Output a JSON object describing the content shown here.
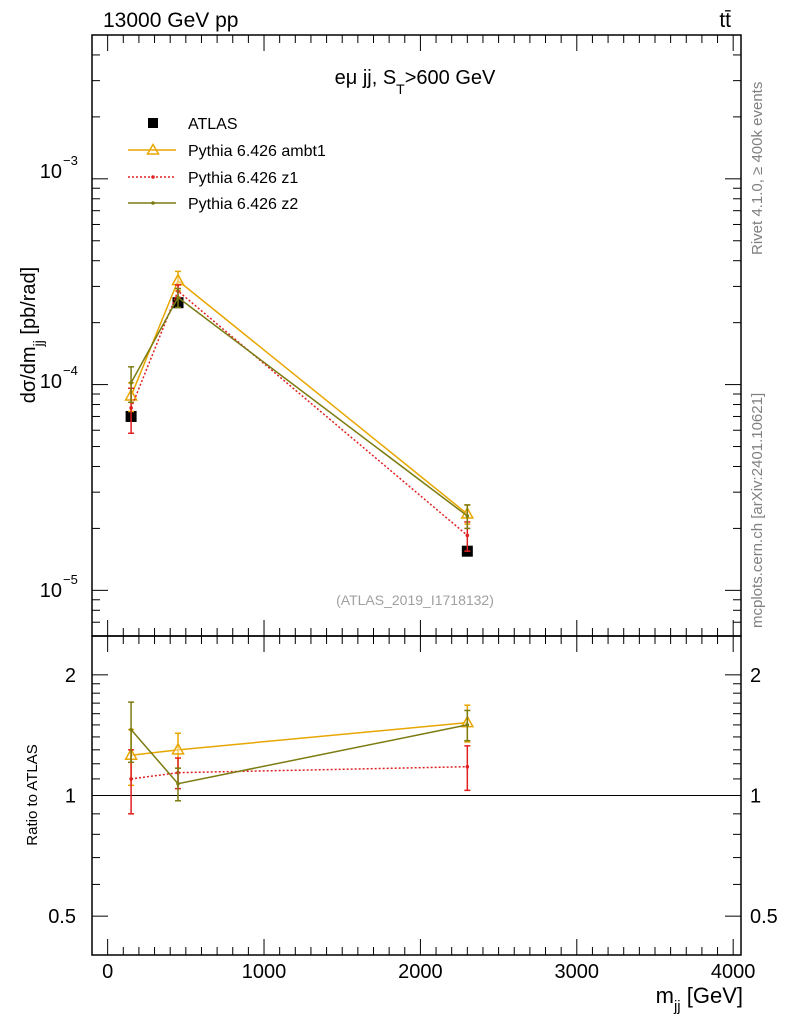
{
  "header": {
    "energy_label": "13000 GeV pp",
    "process_label": "tt̄"
  },
  "side_labels": {
    "rivet_label": "Rivet 4.1.0, ≥ 400k events",
    "mcplots_label": "mcplots.cern.ch [arXiv:2401.10621]"
  },
  "chart_data": [
    {
      "panel": "main",
      "type": "line",
      "title_base": "eμ jj, S",
      "title_sub": "T",
      "title_tail": ">600 GeV",
      "ylabel_base": "dσ/dm",
      "ylabel_sub": "jj",
      "ylabel_tail": " [pb/rad]",
      "yscale": "log",
      "ylim": [
        6e-06,
        0.005
      ],
      "xlim": [
        -100,
        4050
      ],
      "yticks": [
        {
          "value": 0.001,
          "base": "10",
          "exp": "−3"
        },
        {
          "value": 0.0001,
          "base": "10",
          "exp": "−4"
        },
        {
          "value": 1e-05,
          "base": "10",
          "exp": "−5"
        }
      ],
      "watermark": "(ATLAS_2019_I1718132)",
      "legend_position": "top-left",
      "series": [
        {
          "name": "ATLAS",
          "style": "data",
          "color": "#000000",
          "x": [
            150,
            450,
            2300
          ],
          "y": [
            7e-05,
            0.00025,
            1.55e-05
          ],
          "err": [
            0,
            0,
            0
          ]
        },
        {
          "name": "Pythia 6.426 ambt1",
          "style": "triangle",
          "color": "#e8a600",
          "x": [
            150,
            450,
            2300
          ],
          "y": [
            8.8e-05,
            0.00032,
            2.35e-05
          ],
          "err": [
            1.4e-05,
            3.5e-05,
            2.5e-06
          ]
        },
        {
          "name": "Pythia 6.426 z1",
          "style": "dotted",
          "color": "#e02020",
          "x": [
            150,
            450,
            2300
          ],
          "y": [
            7.7e-05,
            0.000285,
            1.85e-05
          ],
          "err": [
            1.9e-05,
            2e-05,
            3e-06
          ]
        },
        {
          "name": "Pythia 6.426 z2",
          "style": "line",
          "color": "#7b7b10",
          "x": [
            150,
            450,
            2300
          ],
          "y": [
            0.000102,
            0.000265,
            2.3e-05
          ],
          "err": [
            2e-05,
            2.8e-05,
            3e-06
          ]
        }
      ]
    },
    {
      "panel": "ratio",
      "type": "line",
      "ylabel": "Ratio to ATLAS",
      "xlabel_base": "m",
      "xlabel_sub": "jj",
      "xlabel_tail": " [GeV]",
      "yscale": "log",
      "ylim": [
        0.4,
        2.5
      ],
      "xlim": [
        -100,
        4050
      ],
      "xticks": [
        0,
        1000,
        2000,
        3000,
        4000
      ],
      "yticks": [
        2,
        1,
        0.5
      ],
      "reference_line": 1,
      "series": [
        {
          "name": "Pythia 6.426 ambt1",
          "style": "triangle",
          "color": "#e8a600",
          "x": [
            150,
            450,
            2300
          ],
          "y": [
            1.26,
            1.3,
            1.52
          ],
          "err": [
            0.2,
            0.13,
            0.16
          ]
        },
        {
          "name": "Pythia 6.426 z1",
          "style": "dotted",
          "color": "#e02020",
          "x": [
            150,
            450,
            2300
          ],
          "y": [
            1.1,
            1.14,
            1.18
          ],
          "err": [
            0.2,
            0.1,
            0.15
          ]
        },
        {
          "name": "Pythia 6.426 z2",
          "style": "line",
          "color": "#7b7b10",
          "x": [
            150,
            450,
            2300
          ],
          "y": [
            1.46,
            1.07,
            1.5
          ],
          "err": [
            0.25,
            0.1,
            0.13
          ]
        }
      ]
    }
  ]
}
